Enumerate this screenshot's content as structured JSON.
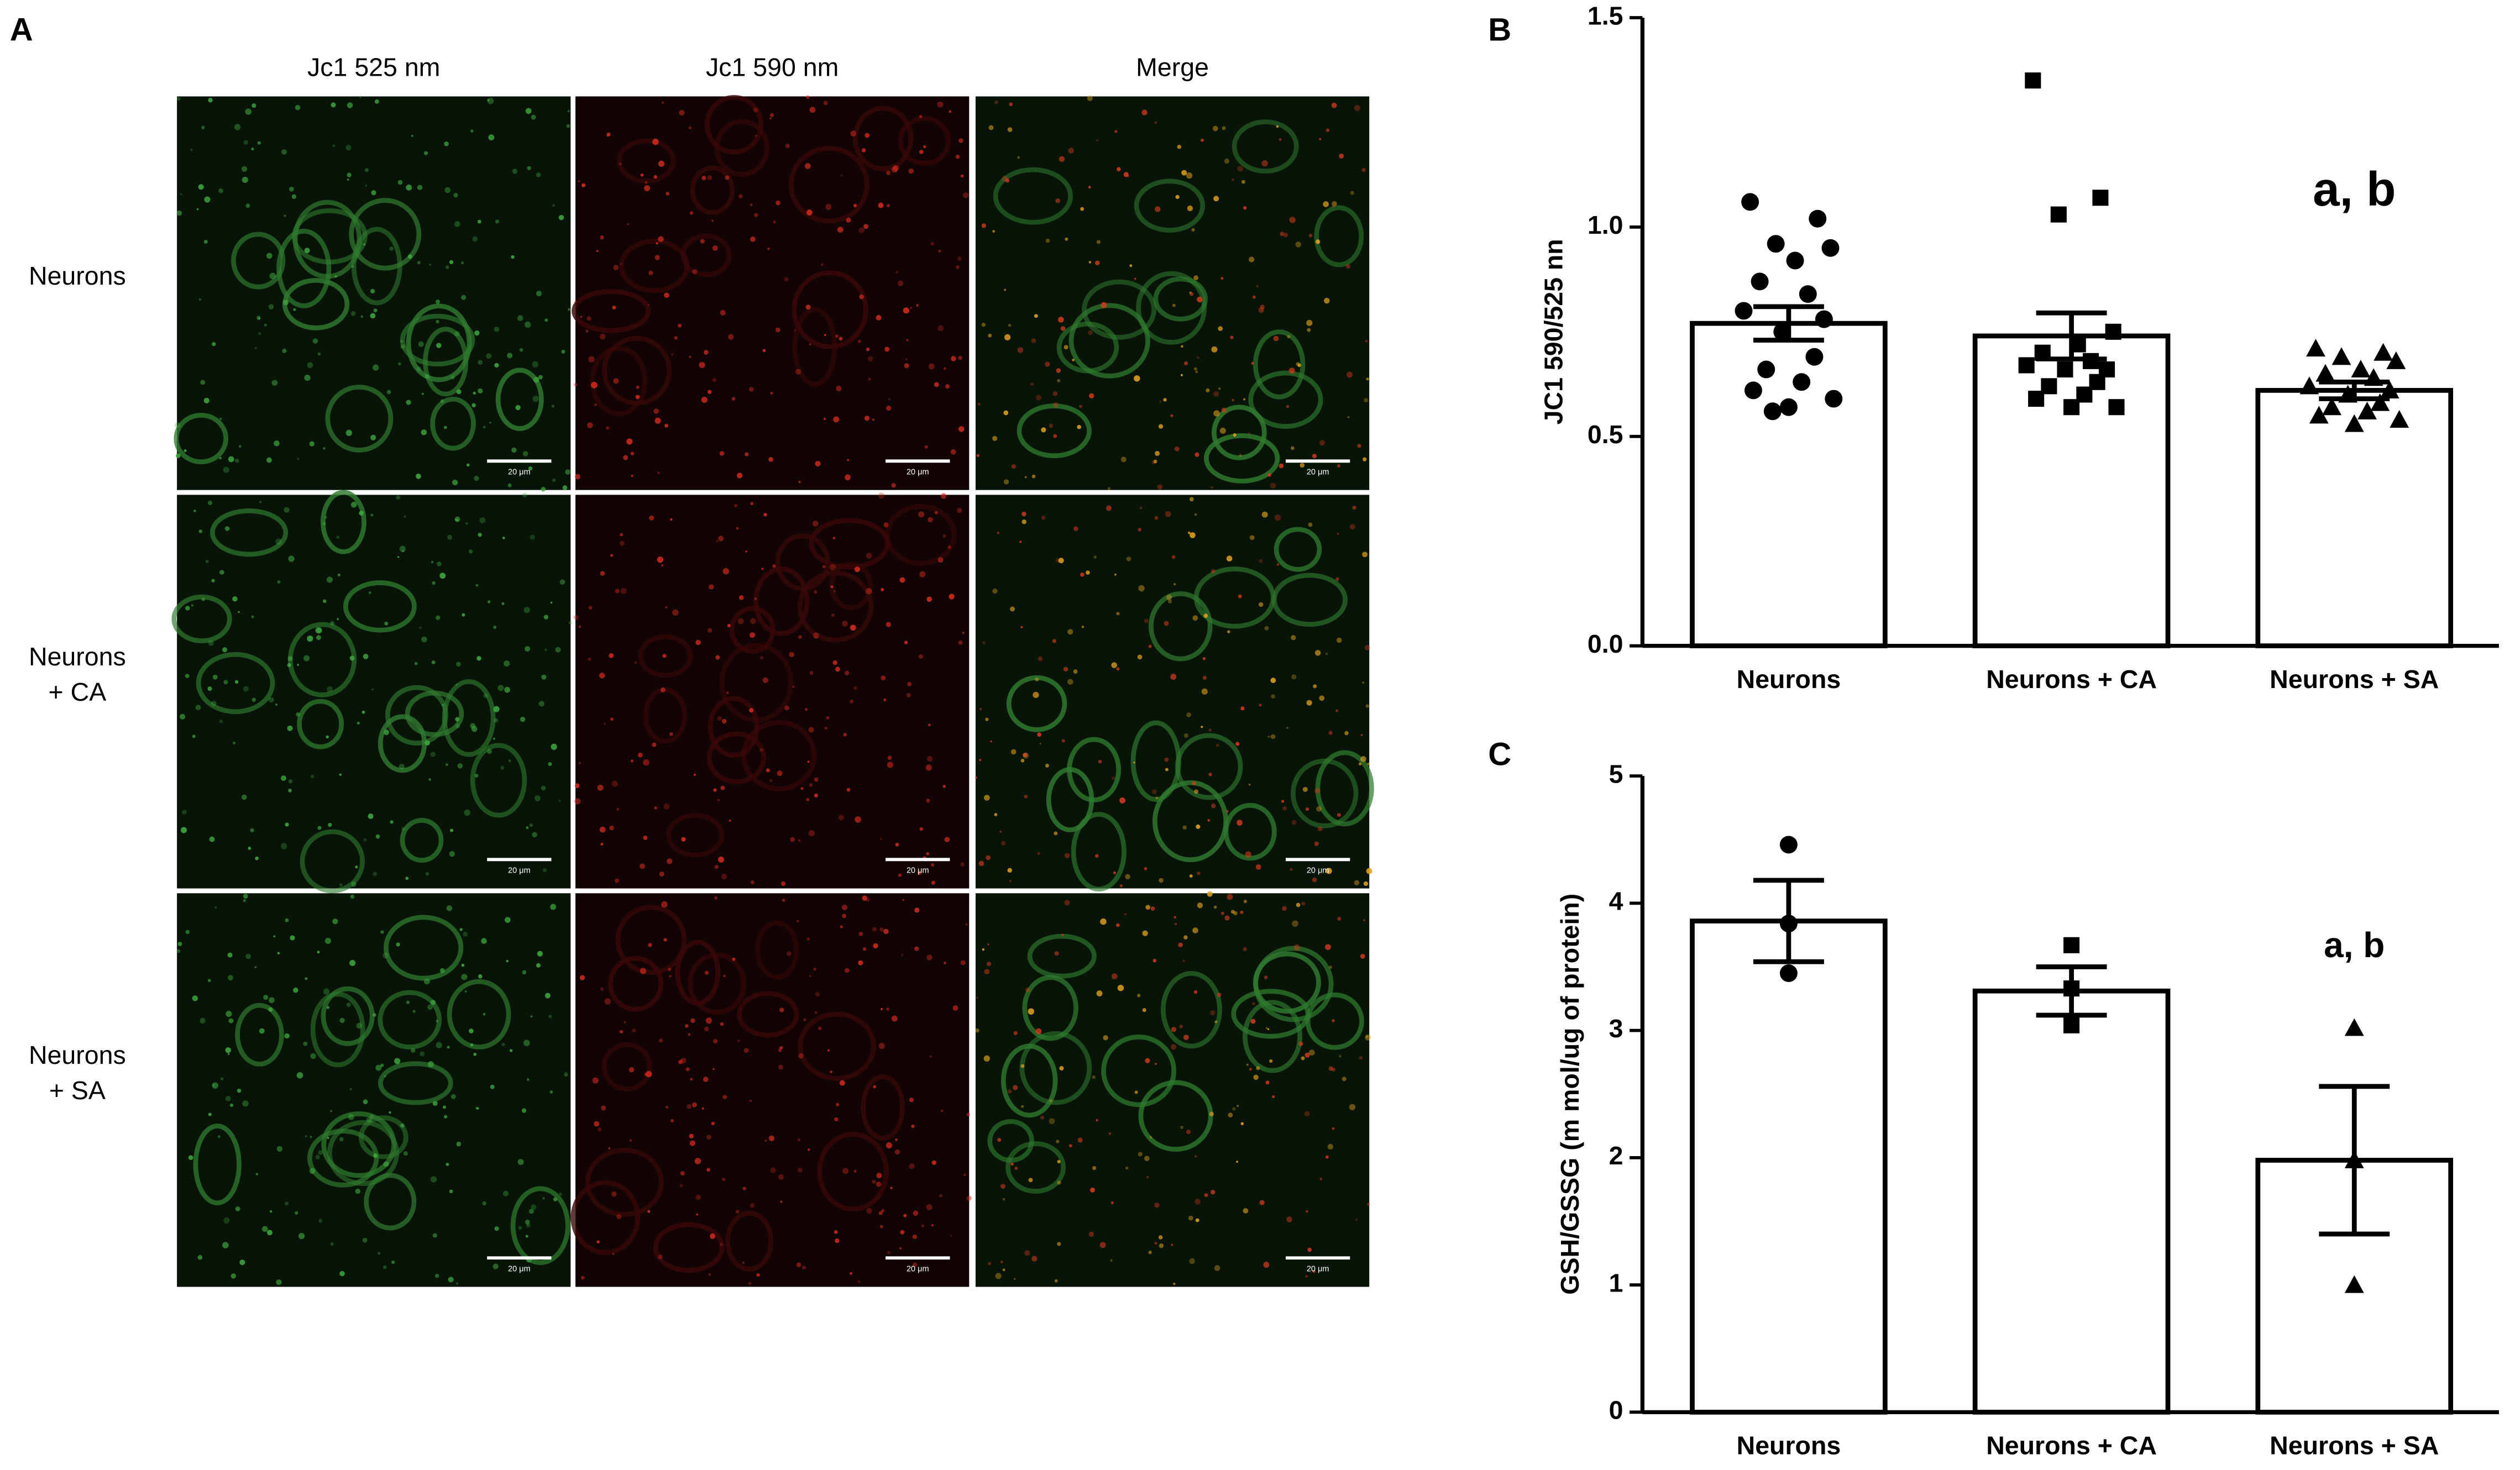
{
  "panel_labels": [
    "A",
    "B",
    "C"
  ],
  "panel_a": {
    "columns": [
      "Jc1 525 nm",
      "Jc1 590 nm",
      "Merge"
    ],
    "rows": [
      [
        "Neurons"
      ],
      [
        "Neurons",
        "+ CA"
      ],
      [
        "Neurons",
        "+ SA"
      ]
    ],
    "scale_label": "20 μm"
  },
  "chart_data": [
    {
      "type": "bar",
      "y_label": "JC1 590/525 nn",
      "categories": [
        "Neurons",
        "Neurons + CA",
        "Neurons + SA"
      ],
      "values": [
        0.77,
        0.74,
        0.61
      ],
      "errors": [
        0.04,
        0.055,
        0.02
      ],
      "points": [
        [
          1.06,
          1.02,
          0.96,
          0.95,
          0.92,
          0.87,
          0.84,
          0.8,
          0.78,
          0.75,
          0.69,
          0.66,
          0.63,
          0.61,
          0.59,
          0.57,
          0.56
        ],
        [
          1.35,
          1.07,
          1.03,
          0.75,
          0.72,
          0.7,
          0.68,
          0.67,
          0.66,
          0.66,
          0.63,
          0.62,
          0.6,
          0.59,
          0.57,
          0.57
        ],
        [
          0.71,
          0.7,
          0.69,
          0.68,
          0.66,
          0.65,
          0.64,
          0.62,
          0.61,
          0.6,
          0.58,
          0.57,
          0.56,
          0.55,
          0.54,
          0.53
        ]
      ],
      "markers": [
        "circle",
        "square",
        "triangle"
      ],
      "color": "#ffffff",
      "ylim": [
        0,
        1.5
      ],
      "yticks": [
        {
          "value": 0,
          "label": "0.0"
        },
        0.5,
        {
          "value": 1,
          "label": "1.0"
        },
        1.5
      ],
      "annotations": [
        "a, b"
      ]
    },
    {
      "type": "bar",
      "y_label": "GSH/GSSG (m mol/ug of protein)",
      "categories": [
        "Neurons",
        "Neurons + CA",
        "Neurons + SA"
      ],
      "values": [
        3.86,
        3.31,
        1.98
      ],
      "errors": [
        0.32,
        0.19,
        0.58
      ],
      "points": [
        [
          4.46,
          3.84,
          3.45
        ],
        [
          3.67,
          3.33,
          3.04
        ],
        [
          3.02,
          1.98,
          1.0
        ]
      ],
      "markers": [
        "circle",
        "square",
        "triangle"
      ],
      "color": "#ffffff",
      "ylim": [
        0,
        5
      ],
      "yticks": [
        0,
        1,
        2,
        3,
        4,
        5
      ],
      "annotations": [
        "a, b"
      ]
    }
  ]
}
